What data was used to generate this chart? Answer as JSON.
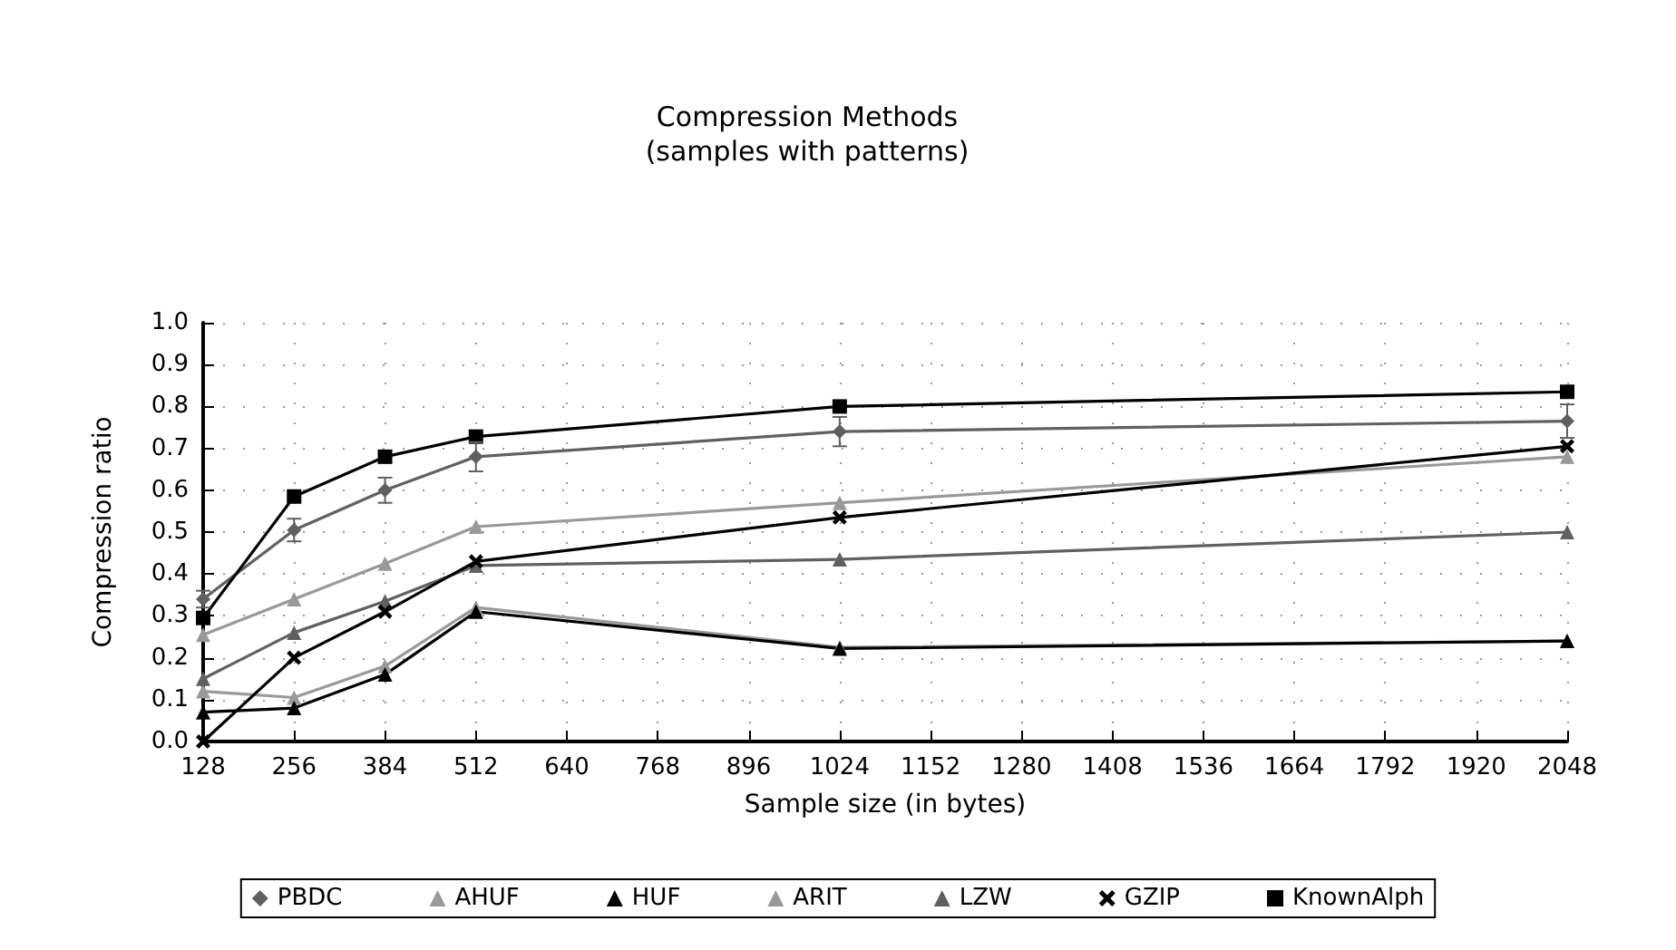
{
  "chart_data": {
    "type": "line",
    "title": "Compression Methods\n(samples with patterns)",
    "xlabel": "Sample size (in bytes)",
    "ylabel": "Compression ratio",
    "x": [
      128,
      256,
      384,
      512,
      1024,
      2048
    ],
    "series": [
      {
        "name": "PBDC",
        "color": "#606060",
        "marker": "diamond",
        "values": [
          0.34,
          0.505,
          0.6,
          0.68,
          0.74,
          0.765
        ],
        "errors": [
          0.02,
          0.027,
          0.03,
          0.035,
          0.035,
          0.04
        ]
      },
      {
        "name": "AHUF",
        "color": "#999999",
        "marker": "triangle",
        "values": [
          0.12,
          0.105,
          0.18,
          0.32,
          0.225,
          0.24
        ]
      },
      {
        "name": "HUF",
        "color": "#000000",
        "marker": "triangle",
        "values": [
          0.07,
          0.08,
          0.16,
          0.31,
          0.222,
          0.24
        ]
      },
      {
        "name": "ARIT",
        "color": "#999999",
        "marker": "triangle",
        "values": [
          0.255,
          0.34,
          0.425,
          0.513,
          0.57,
          0.68
        ]
      },
      {
        "name": "LZW",
        "color": "#606060",
        "marker": "triangle",
        "values": [
          0.15,
          0.26,
          0.335,
          0.42,
          0.435,
          0.5
        ]
      },
      {
        "name": "GZIP",
        "color": "#000000",
        "marker": "cross",
        "values": [
          0.0,
          0.2,
          0.31,
          0.43,
          0.535,
          0.705
        ]
      },
      {
        "name": "KnownAlph",
        "color": "#000000",
        "marker": "square",
        "values": [
          0.295,
          0.585,
          0.68,
          0.728,
          0.8,
          0.835
        ]
      }
    ],
    "xlim": [
      128,
      2048
    ],
    "xticks": [
      128,
      256,
      384,
      512,
      640,
      768,
      896,
      1024,
      1152,
      1280,
      1408,
      1536,
      1664,
      1792,
      1920,
      2048
    ],
    "ylim": [
      0,
      1
    ],
    "yticks": [
      {
        "value": 0,
        "label": "0.0"
      },
      0.1,
      0.2,
      0.3,
      0.4,
      0.5,
      0.6,
      0.7,
      0.8,
      0.9,
      {
        "value": 1,
        "label": "1.0"
      }
    ],
    "grid": true,
    "legend": "bottom",
    "line_style": "solid"
  }
}
